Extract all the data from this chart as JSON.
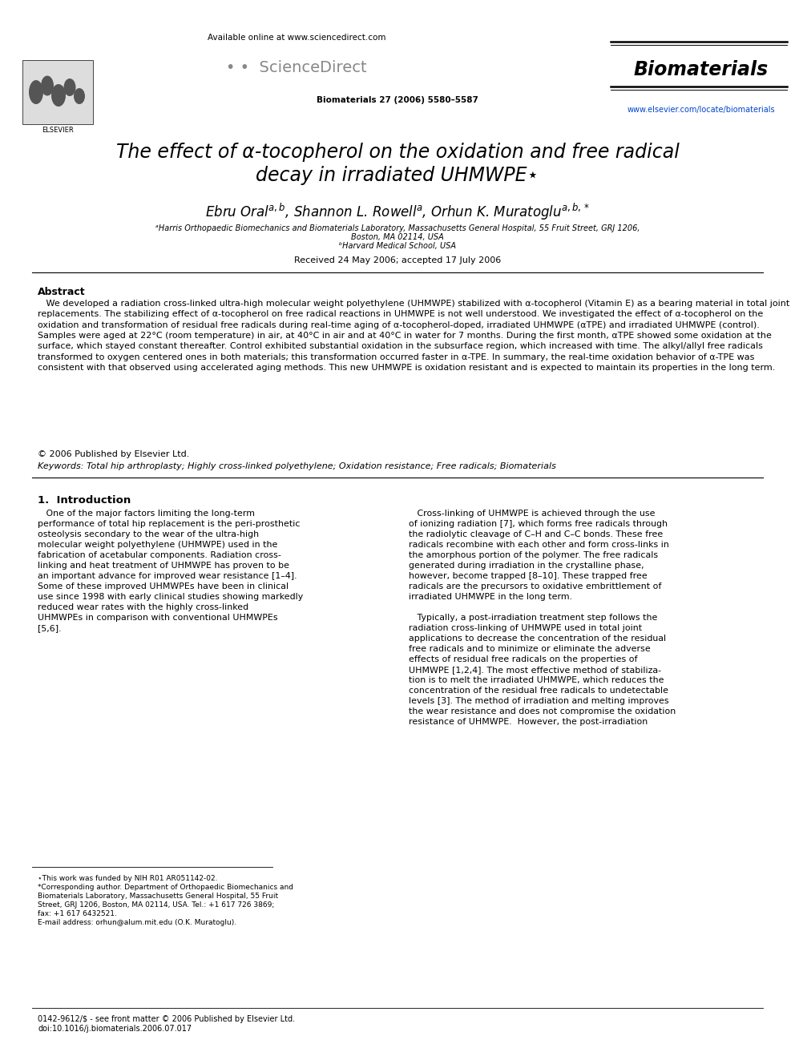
{
  "page_bg": "#ffffff",
  "available_online": "Available online at www.sciencedirect.com",
  "journal_name": "Biomaterials",
  "journal_citation": "Biomaterials 27 (2006) 5580–5587",
  "journal_url": "www.elsevier.com/locate/biomaterials",
  "elsevier_label": "ELSEVIER",
  "title_line1": "The effect of α-tocopherol on the oxidation and free radical",
  "title_line2": "decay in irradiated UHMWPE⋆",
  "affiliation_a": "ᵃHarris Orthopaedic Biomechanics and Biomaterials Laboratory, Massachusetts General Hospital, 55 Fruit Street, GRJ 1206,",
  "affiliation_a2": "Boston, MA 02114, USA",
  "affiliation_b": "ᵇHarvard Medical School, USA",
  "received": "Received 24 May 2006; accepted 17 July 2006",
  "abstract_heading": "Abstract",
  "abstract_text": "   We developed a radiation cross-linked ultra-high molecular weight polyethylene (UHMWPE) stabilized with α-tocopherol (Vitamin E) as a bearing material in total joint replacements. The stabilizing effect of α-tocopherol on free radical reactions in UHMWPE is not well understood. We investigated the effect of α-tocopherol on the oxidation and transformation of residual free radicals during real-time aging of α-tocopherol-doped, irradiated UHMWPE (αTPE) and irradiated UHMWPE (control). Samples were aged at 22°C (room temperature) in air, at 40°C in air and at 40°C in water for 7 months. During the first month, αTPE showed some oxidation at the surface, which stayed constant thereafter. Control exhibited substantial oxidation in the subsurface region, which increased with time. The alkyl/allyl free radicals transformed to oxygen centered ones in both materials; this transformation occurred faster in α-TPE. In summary, the real-time oxidation behavior of α-TPE was consistent with that observed using accelerated aging methods. This new UHMWPE is oxidation resistant and is expected to maintain its properties in the long term.",
  "copyright": "© 2006 Published by Elsevier Ltd.",
  "keywords_label": "Keywords:",
  "keywords_text": " Total hip arthroplasty; Highly cross-linked polyethylene; Oxidation resistance; Free radicals; Biomaterials",
  "section1_heading": "1.  Introduction",
  "intro_col1": "   One of the major factors limiting the long-term performance of total hip replacement is the peri-prosthetic osteolysis secondary to the wear of the ultra-high molecular weight polyethylene (UHMWPE) used in the fabrication of acetabular components. Radiation cross-linking and heat treatment of UHMWPE has proven to be an important advance for improved wear resistance [1–4]. Some of these improved UHMWPEs have been in clinical use since 1998 with early clinical studies showing markedly reduced wear rates with the highly cross-linked UHMWPEs in comparison with conventional UHMWPEs [5,6].",
  "intro_col2a": "   Cross-linking of UHMWPE is achieved through the use of ionizing radiation [7], which forms free radicals through the radiolytic cleavage of C–H and C–C bonds. These free radicals recombine with each other and form cross-links in the amorphous portion of the polymer. The free radicals generated during irradiation in the crystalline phase, however, become trapped [8–10]. These trapped free radicals are the precursors to oxidative embrittlement of irradiated UHMWPE in the long term.",
  "intro_col2b": "   Typically, a post-irradiation treatment step follows the radiation cross-linking of UHMWPE used in total joint applications to decrease the concentration of the residual free radicals and to minimize or eliminate the adverse effects of residual free radicals on the properties of UHMWPE [1,2,4]. The most effective method of stabilization is to melt the irradiated UHMWPE, which reduces the concentration of the residual free radicals to undetectable levels [3]. The method of irradiation and melting improves the wear resistance and does not compromise the oxidation resistance of UHMWPE. However, the post-irradiation",
  "footnote1": "⋆This work was funded by NIH R01 AR051142-02.",
  "footnote2a": "*Corresponding author. Department of Orthopaedic Biomechanics and",
  "footnote2b": "Biomaterials Laboratory, Massachusetts General Hospital, 55 Fruit",
  "footnote2c": "Street, GRJ 1206, Boston, MA 02114, USA. Tel.: +1 617 726 3869;",
  "footnote2d": "fax: +1 617 6432521.",
  "footnote3": "E-mail address: orhun@alum.mit.edu (O.K. Muratoglu).",
  "footer1": "0142-9612/$ - see front matter © 2006 Published by Elsevier Ltd.",
  "footer2": "doi:10.1016/j.biomaterials.2006.07.017"
}
